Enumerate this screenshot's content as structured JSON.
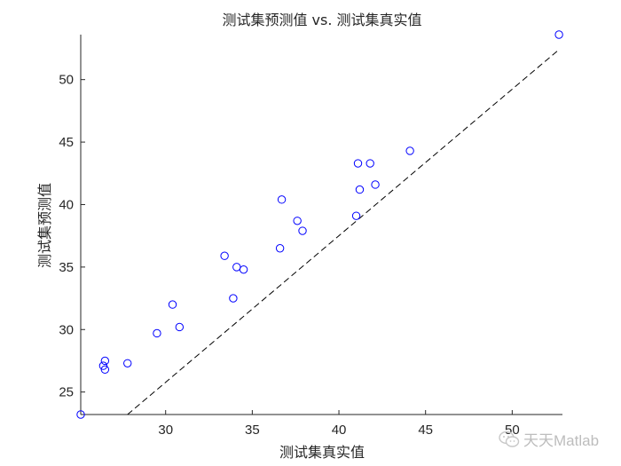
{
  "chart_data": {
    "type": "scatter",
    "title": "测试集预测值 vs. 测试集真实值",
    "xlabel": "测试集真实值",
    "ylabel": "测试集预测值",
    "xlim": [
      25.1,
      52.9
    ],
    "ylim": [
      23.2,
      53.6
    ],
    "xticks": [
      30,
      35,
      40,
      45,
      50
    ],
    "yticks": [
      25,
      30,
      35,
      40,
      45,
      50
    ],
    "grid": false,
    "marker_color": "#0000ff",
    "reference_line": {
      "style": "dashed",
      "color": "#000000",
      "points": [
        [
          27.8,
          23.2
        ],
        [
          52.7,
          52.4
        ]
      ]
    },
    "series": [
      {
        "points": [
          [
            25.1,
            23.2
          ],
          [
            26.4,
            27.1
          ],
          [
            26.5,
            27.5
          ],
          [
            26.5,
            26.8
          ],
          [
            27.8,
            27.3
          ],
          [
            29.5,
            29.7
          ],
          [
            30.4,
            32.0
          ],
          [
            30.8,
            30.2
          ],
          [
            33.4,
            35.9
          ],
          [
            33.9,
            32.5
          ],
          [
            34.1,
            35.0
          ],
          [
            34.5,
            34.8
          ],
          [
            36.6,
            36.5
          ],
          [
            36.7,
            40.4
          ],
          [
            37.6,
            38.7
          ],
          [
            37.9,
            37.9
          ],
          [
            41.0,
            39.1
          ],
          [
            41.1,
            43.3
          ],
          [
            41.2,
            41.2
          ],
          [
            41.8,
            43.3
          ],
          [
            42.1,
            41.6
          ],
          [
            44.1,
            44.3
          ],
          [
            52.7,
            53.6
          ]
        ]
      }
    ]
  },
  "watermark": {
    "text": "天天Matlab",
    "icon": "wechat-icon"
  }
}
